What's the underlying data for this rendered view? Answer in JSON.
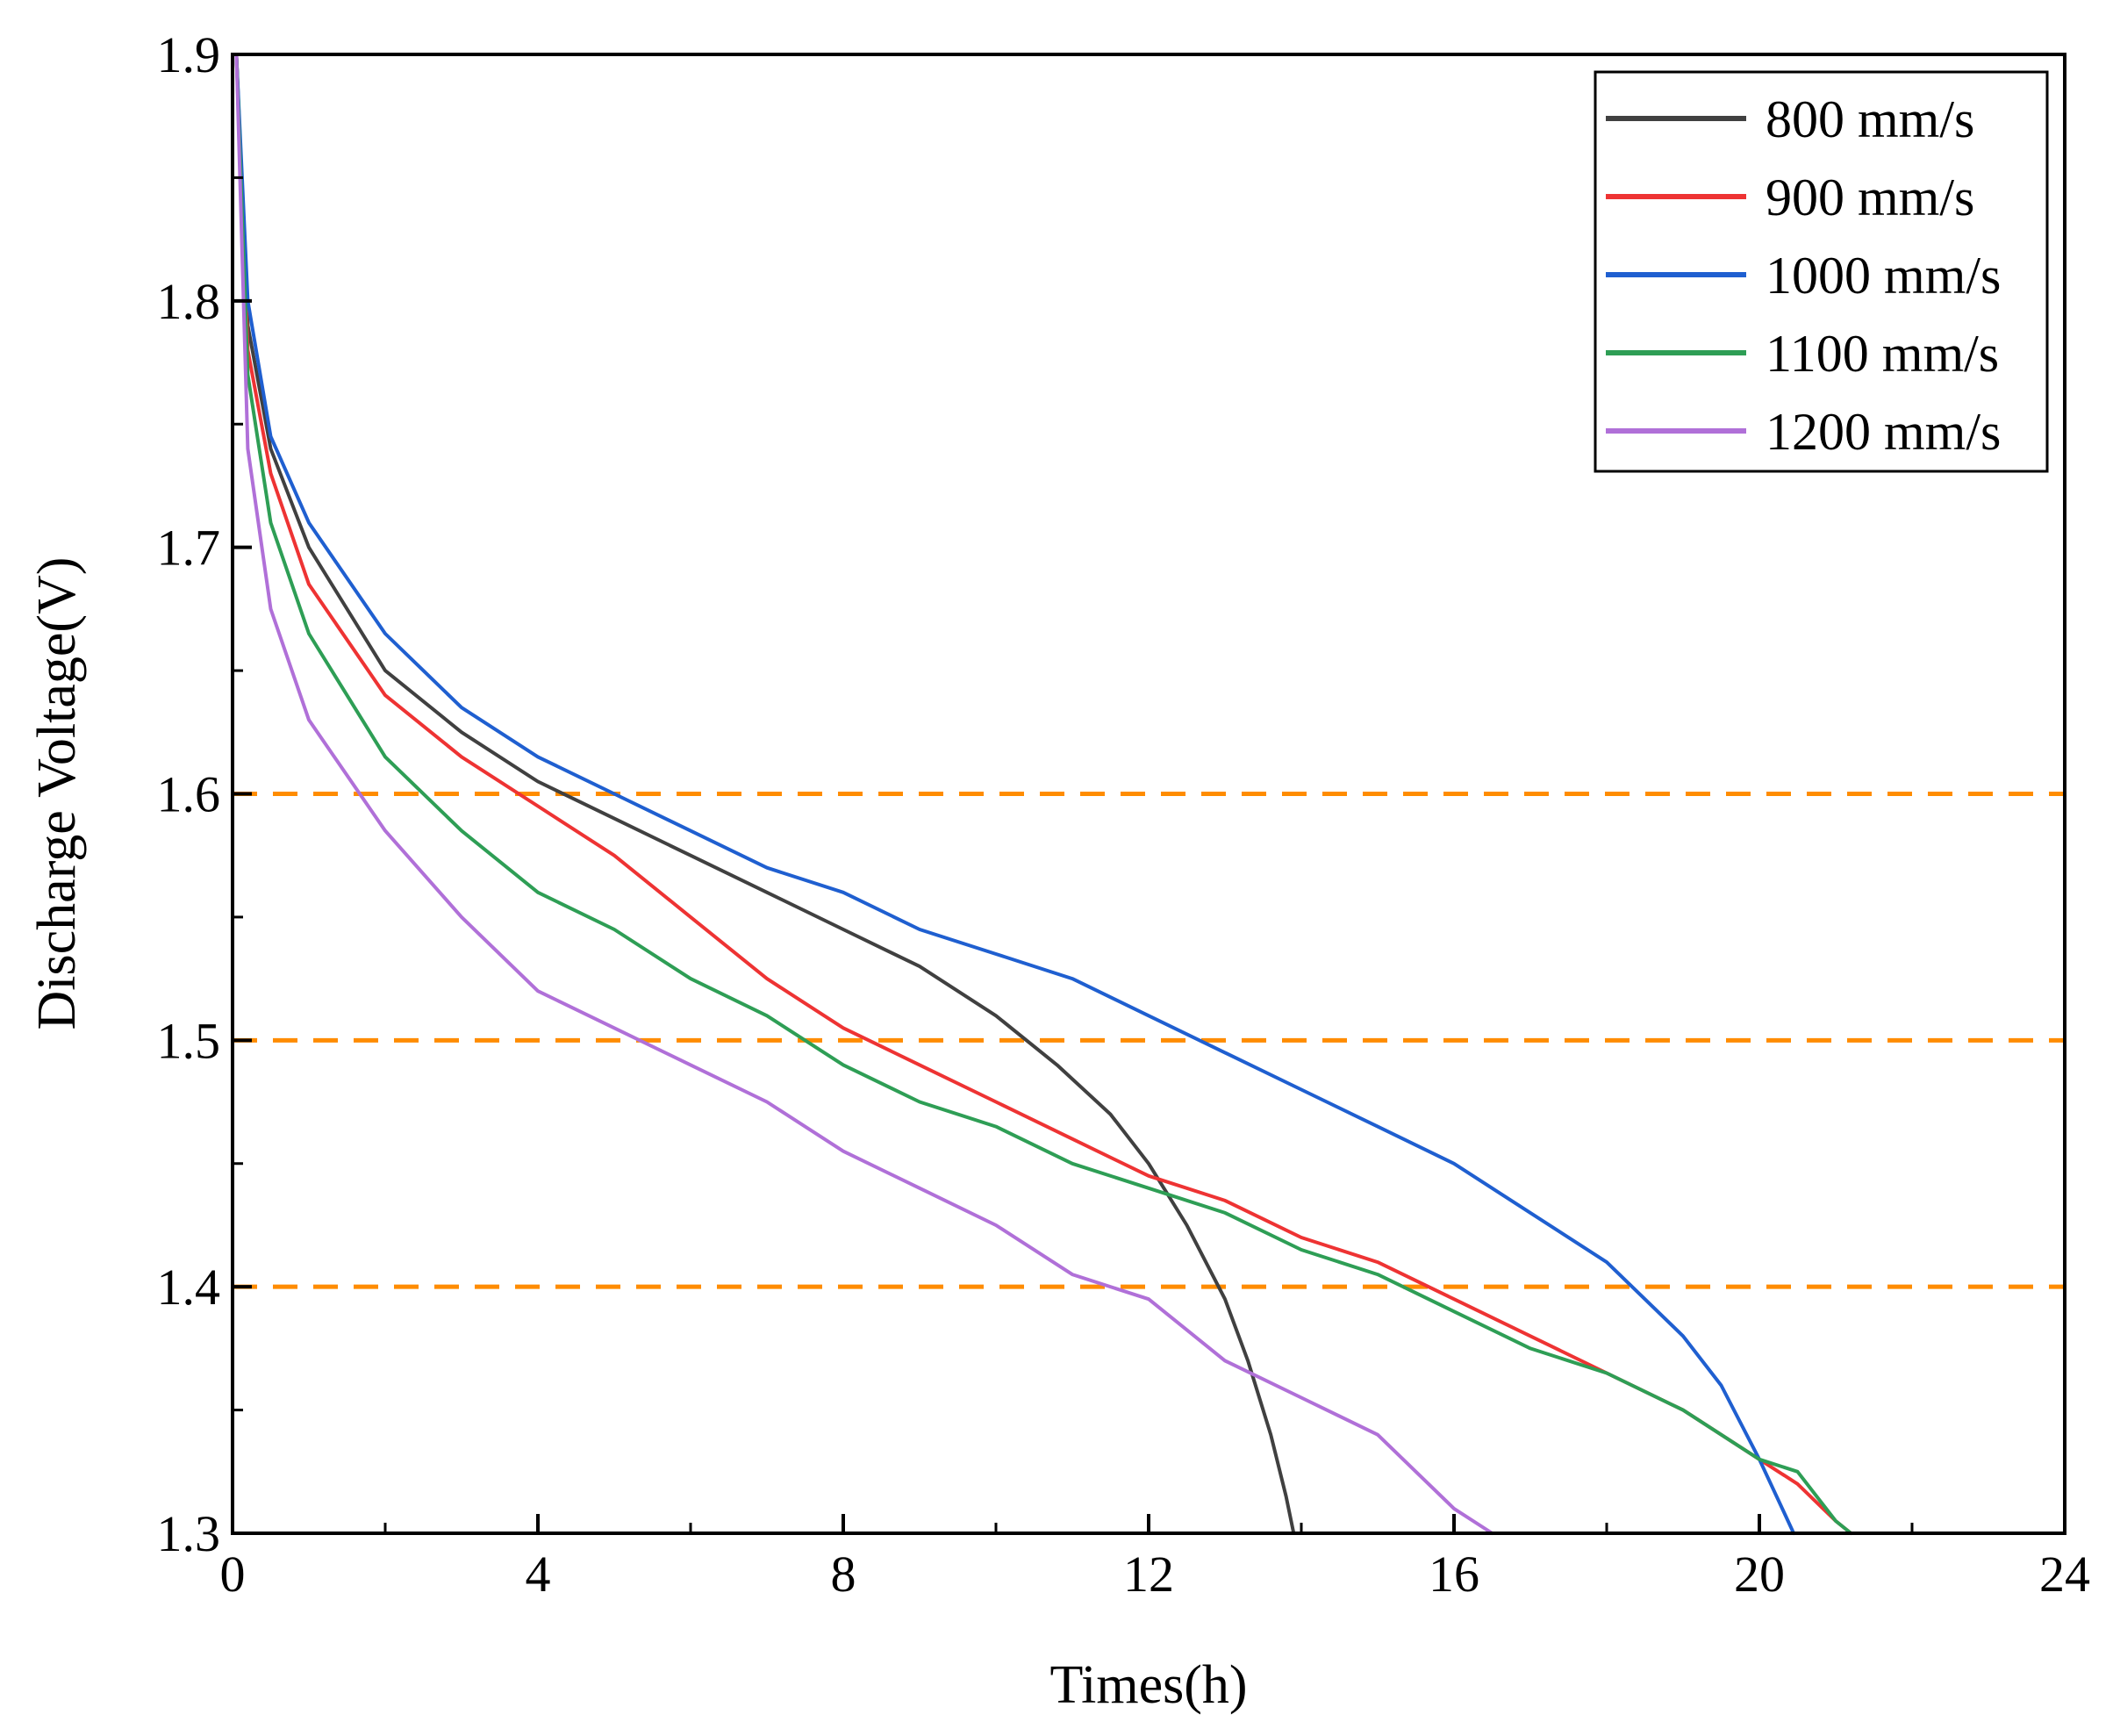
{
  "chart_data": {
    "type": "line",
    "title": "",
    "xlabel": "Times(h)",
    "ylabel": "Discharge Voltage(V)",
    "xlim": [
      0,
      24
    ],
    "ylim": [
      1.3,
      1.9
    ],
    "xticks": [
      0,
      4,
      8,
      12,
      16,
      20,
      24
    ],
    "xtick_labels": [
      "0",
      "4",
      "8",
      "12",
      "16",
      "20",
      "24"
    ],
    "yticks": [
      1.3,
      1.4,
      1.5,
      1.6,
      1.7,
      1.8,
      1.9
    ],
    "ytick_labels": [
      "1.3",
      "1.4",
      "1.5",
      "1.6",
      "1.7",
      "1.8",
      "1.9"
    ],
    "grid": false,
    "legend_position": "top-right",
    "reference_lines": [
      {
        "y": 1.6,
        "color": "#ff8c00",
        "style": "dashed"
      },
      {
        "y": 1.5,
        "color": "#ff8c00",
        "style": "dashed"
      },
      {
        "y": 1.4,
        "color": "#ff8c00",
        "style": "dashed"
      }
    ],
    "series": [
      {
        "name": "800 mm/s",
        "color": "#404040",
        "x": [
          0.05,
          0.2,
          0.5,
          1,
          2,
          3,
          4,
          5,
          6,
          7,
          8,
          9,
          10,
          10.8,
          11.5,
          12,
          12.5,
          13,
          13.3,
          13.6,
          13.8,
          13.9
        ],
        "y": [
          1.9,
          1.79,
          1.74,
          1.7,
          1.65,
          1.625,
          1.605,
          1.59,
          1.575,
          1.56,
          1.545,
          1.53,
          1.51,
          1.49,
          1.47,
          1.45,
          1.425,
          1.395,
          1.37,
          1.34,
          1.315,
          1.3
        ]
      },
      {
        "name": "900 mm/s",
        "color": "#ee3333",
        "x": [
          0.05,
          0.2,
          0.5,
          1,
          2,
          3,
          4,
          5,
          6,
          7,
          8,
          9,
          10,
          11,
          12,
          13,
          14,
          15,
          16,
          17,
          18,
          19,
          20,
          20.5,
          21,
          21.2
        ],
        "y": [
          1.9,
          1.78,
          1.73,
          1.685,
          1.64,
          1.615,
          1.595,
          1.575,
          1.55,
          1.525,
          1.505,
          1.49,
          1.475,
          1.46,
          1.445,
          1.435,
          1.42,
          1.41,
          1.395,
          1.38,
          1.365,
          1.35,
          1.33,
          1.32,
          1.305,
          1.3
        ]
      },
      {
        "name": "1000 mm/s",
        "color": "#1f5fd0",
        "x": [
          0.05,
          0.2,
          0.5,
          1,
          2,
          3,
          4,
          5,
          6,
          7,
          8,
          9,
          10,
          11,
          12,
          13,
          14,
          15,
          16,
          17,
          18,
          18.5,
          19,
          19.5,
          20,
          20.3,
          20.45
        ],
        "y": [
          1.9,
          1.8,
          1.745,
          1.71,
          1.665,
          1.635,
          1.615,
          1.6,
          1.585,
          1.57,
          1.56,
          1.545,
          1.535,
          1.525,
          1.51,
          1.495,
          1.48,
          1.465,
          1.45,
          1.43,
          1.41,
          1.395,
          1.38,
          1.36,
          1.33,
          1.31,
          1.3
        ]
      },
      {
        "name": "1100 mm/s",
        "color": "#2e9e55",
        "x": [
          0.05,
          0.2,
          0.5,
          1,
          2,
          3,
          4,
          5,
          6,
          7,
          8,
          9,
          10,
          11,
          12,
          13,
          14,
          15,
          16,
          17,
          18,
          19,
          20,
          20.5,
          21,
          21.2
        ],
        "y": [
          1.9,
          1.77,
          1.71,
          1.665,
          1.615,
          1.585,
          1.56,
          1.545,
          1.525,
          1.51,
          1.49,
          1.475,
          1.465,
          1.45,
          1.44,
          1.43,
          1.415,
          1.405,
          1.39,
          1.375,
          1.365,
          1.35,
          1.33,
          1.325,
          1.305,
          1.3
        ]
      },
      {
        "name": "1200 mm/s",
        "color": "#b070d8",
        "x": [
          0.05,
          0.2,
          0.5,
          1,
          2,
          3,
          4,
          5,
          6,
          7,
          8,
          9,
          10,
          11,
          12,
          13,
          14,
          15,
          15.5,
          16,
          16.5
        ],
        "y": [
          1.9,
          1.74,
          1.675,
          1.63,
          1.585,
          1.55,
          1.52,
          1.505,
          1.49,
          1.475,
          1.455,
          1.44,
          1.425,
          1.405,
          1.395,
          1.37,
          1.355,
          1.34,
          1.325,
          1.31,
          1.3
        ]
      }
    ]
  }
}
